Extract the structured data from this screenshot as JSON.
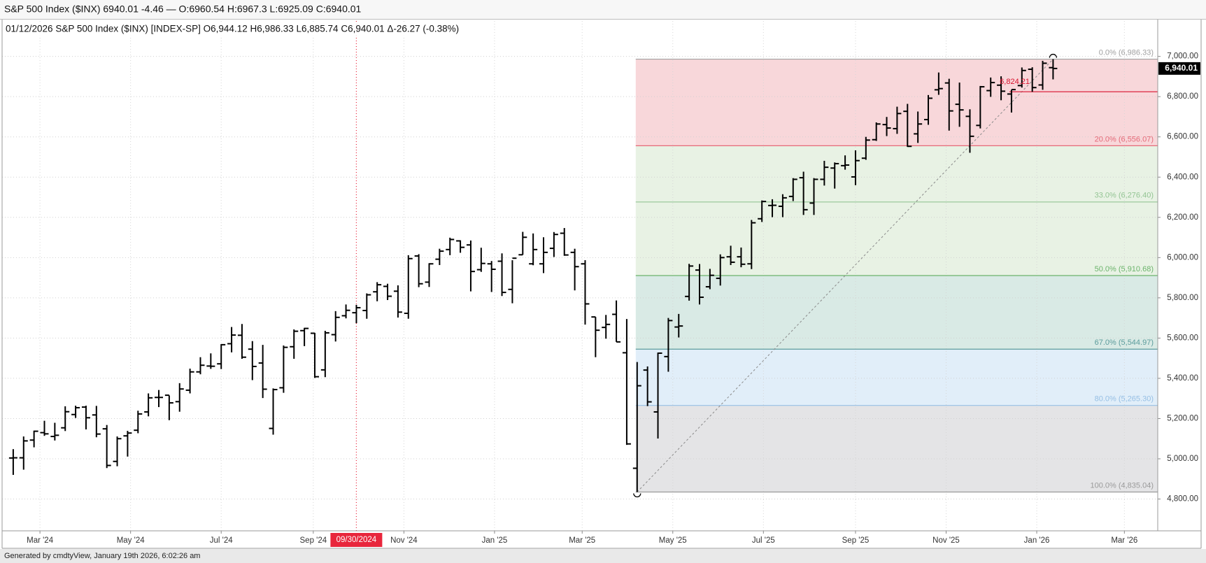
{
  "chart_data": {
    "type": "ohlc",
    "title": "S&P 500 Index ($INX) 6940.01 -4.46 — O:6960.54 H:6967.3 L:6925.09 C:6940.01",
    "subtitle": "01/12/2026 S&P 500 Index ($INX) [INDEX-SP] O6,944.12 H6,986.33 L6,885.74 C6,940.01 Δ-26.27 (-0.38%)",
    "footer": "Generated by cmdtyView, January 19th 2026, 6:02:26 am",
    "date_marker": "09/30/2024",
    "color": "#000000",
    "grid": true,
    "categories": [
      null,
      null,
      null,
      null,
      null,
      null,
      null,
      null,
      null,
      null,
      null,
      null,
      null,
      null,
      null,
      null,
      null,
      null,
      null,
      null,
      null,
      null,
      null,
      null,
      null,
      null,
      null,
      null,
      null,
      null,
      null,
      null,
      null,
      null,
      null,
      null,
      null,
      null,
      null,
      null,
      null,
      null,
      null,
      null,
      null,
      null,
      null,
      null,
      null,
      null,
      null,
      null,
      null,
      null,
      null,
      null,
      null,
      null,
      null,
      null,
      null,
      null,
      null,
      null,
      null,
      null,
      null,
      null,
      null,
      null,
      null,
      null,
      null,
      null,
      null,
      null,
      null,
      null,
      null,
      null,
      null,
      null,
      null,
      null,
      null,
      null,
      null,
      null,
      null,
      null,
      null,
      null,
      null,
      null,
      null,
      null,
      null,
      null,
      null,
      null,
      null
    ],
    "open": [
      5004,
      5005,
      5093,
      5130,
      5111,
      5154,
      5220,
      5257,
      5218,
      5149,
      4987,
      5114,
      5142,
      5233,
      5305,
      5316,
      5284,
      5341,
      5432,
      5461,
      5472,
      5572,
      5614,
      5545,
      5476,
      5151,
      5353,
      5557,
      5637,
      5624,
      5442,
      5617,
      5711,
      5726,
      5737,
      5830,
      5857,
      5833,
      5723,
      6008,
      5878,
      5992,
      6040,
      6083,
      6063,
      5940,
      5969,
      5982,
      5842,
      6014,
      5969,
      5969,
      6046,
      6121,
      6026,
      5969,
      5705,
      5653,
      5718,
      5527,
      4953,
      5441,
      5233,
      5508,
      5655,
      5807,
      5938,
      5855,
      5897,
      6004,
      6004,
      5969,
      6193,
      6259,
      6255,
      6304,
      6397,
      6271,
      6389,
      6445,
      6457,
      6401,
      6494,
      6586,
      6661,
      6641,
      6727,
      6615,
      6686,
      6834,
      6868,
      6762,
      6702,
      6657,
      6830,
      6857,
      6813,
      6855,
      6936,
      6858,
      6944.12
    ],
    "high": [
      5048,
      5111,
      5140,
      5189,
      5179,
      5261,
      5264,
      5264,
      5263,
      5168,
      5111,
      5139,
      5239,
      5325,
      5342,
      5315,
      5376,
      5448,
      5505,
      5524,
      5570,
      5655,
      5670,
      5585,
      5566,
      5350,
      5563,
      5643,
      5651,
      5626,
      5636,
      5734,
      5767,
      5765,
      5822,
      5878,
      5870,
      5862,
      6012,
      6017,
      5972,
      6044,
      6099,
      6086,
      6085,
      6049,
      5983,
      6021,
      5987,
      6128,
      6120,
      6101,
      6127,
      6147,
      6044,
      5987,
      5705,
      5715,
      5787,
      5695,
      5481,
      5459,
      5528,
      5700,
      5720,
      5969,
      5968,
      5944,
      6016,
      6059,
      6050,
      6187,
      6284,
      6290,
      6315,
      6395,
      6427,
      6395,
      6481,
      6473,
      6508,
      6533,
      6600,
      6672,
      6699,
      6750,
      6764,
      6726,
      6808,
      6920,
      6889,
      6870,
      6737,
      6853,
      6895,
      6901,
      6834,
      6945,
      6946,
      6978,
      6986.33
    ],
    "low": [
      4920,
      4946,
      5057,
      5114,
      5091,
      5138,
      5203,
      5146,
      5107,
      4954,
      4963,
      5011,
      5127,
      5211,
      5257,
      5192,
      5234,
      5325,
      5420,
      5447,
      5446,
      5529,
      5497,
      5391,
      5302,
      5120,
      5328,
      5497,
      5560,
      5402,
      5406,
      5583,
      5698,
      5674,
      5696,
      5783,
      5789,
      5702,
      5696,
      5853,
      5854,
      5963,
      6012,
      6024,
      5832,
      5929,
      5829,
      5809,
      5773,
      6014,
      5962,
      5923,
      6003,
      6009,
      5837,
      5667,
      5505,
      5597,
      5581,
      5069,
      4835.04,
      5262,
      5101,
      5433,
      5603,
      5786,
      5767,
      5843,
      5861,
      5963,
      5952,
      5943,
      6177,
      6201,
      6201,
      6281,
      6212,
      6212,
      6358,
      6343,
      6437,
      6360,
      6486,
      6580,
      6604,
      6615,
      6550,
      6570,
      6660,
      6809,
      6631,
      6650,
      6521,
      6642,
      6799,
      6782,
      6721,
      6845,
      6824,
      6834,
      6885.74
    ],
    "close": [
      5005,
      5089,
      5137,
      5124,
      5117,
      5234,
      5254,
      5204,
      5123,
      4967,
      5100,
      5128,
      5223,
      5303,
      5305,
      5278,
      5347,
      5432,
      5465,
      5460,
      5567,
      5615,
      5505,
      5459,
      5346,
      5344,
      5554,
      5634,
      5648,
      5408,
      5626,
      5703,
      5738,
      5751,
      5815,
      5865,
      5808,
      5729,
      5995,
      5870,
      5969,
      6032,
      6090,
      6051,
      5931,
      5971,
      5942,
      5827,
      5997,
      6101,
      6040,
      6026,
      6115,
      6013,
      5955,
      5770,
      5639,
      5668,
      5581,
      5074,
      5363,
      5283,
      5525,
      5687,
      5660,
      5958,
      5803,
      5912,
      6000,
      5977,
      5967,
      6173,
      6279,
      6260,
      6297,
      6389,
      6238,
      6389,
      6449,
      6467,
      6460,
      6482,
      6584,
      6664,
      6644,
      6716,
      6553,
      6664,
      6792,
      6840,
      6729,
      6734,
      6603,
      6849,
      6870,
      6827,
      6835,
      6930,
      6845,
      6966,
      6940.01
    ],
    "ylim": [
      4642,
      7176
    ],
    "yticks": [
      {
        "value": 4800,
        "label": "4,800.00"
      },
      {
        "value": 5000,
        "label": "5,000.00"
      },
      {
        "value": 5200,
        "label": "5,200.00"
      },
      {
        "value": 5400,
        "label": "5,400.00"
      },
      {
        "value": 5600,
        "label": "5,600.00"
      },
      {
        "value": 5800,
        "label": "5,800.00"
      },
      {
        "value": 6000,
        "label": "6,000.00"
      },
      {
        "value": 6200,
        "label": "6,200.00"
      },
      {
        "value": 6400,
        "label": "6,400.00"
      },
      {
        "value": 6600,
        "label": "6,600.00"
      },
      {
        "value": 6800,
        "label": "6,800.00"
      },
      {
        "value": 7000,
        "label": "7,000.00"
      }
    ],
    "xticks": [
      {
        "value": 2.571,
        "label": "Mar '24"
      },
      {
        "value": 11.286,
        "label": "May '24"
      },
      {
        "value": 20,
        "label": "Jul '24"
      },
      {
        "value": 28.857,
        "label": "Sep '24"
      },
      {
        "value": 37.571,
        "label": "Nov '24"
      },
      {
        "value": 46.286,
        "label": "Jan '25"
      },
      {
        "value": 54.714,
        "label": "Mar '25"
      },
      {
        "value": 63.429,
        "label": "May '25"
      },
      {
        "value": 72.143,
        "label": "Jul '25"
      },
      {
        "value": 81,
        "label": "Sep '25"
      },
      {
        "value": 89.714,
        "label": "Nov '25"
      },
      {
        "value": 98.429,
        "label": "Jan '26"
      },
      {
        "value": 106.857,
        "label": "Mar '26"
      }
    ],
    "fib_levels": [
      {
        "label": "0.0% (6,986.33)",
        "value": 6986.33,
        "color": "#a0a0a0"
      },
      {
        "label": "20.0% (6,556.07)",
        "value": 6556.07,
        "color": "#e46a78"
      },
      {
        "label": "33.0% (6,276.40)",
        "value": 6276.4,
        "color": "#93c493"
      },
      {
        "label": "50.0% (5,910.68)",
        "value": 5910.68,
        "color": "#6cb46c"
      },
      {
        "label": "67.0% (5,544.97)",
        "value": 5544.97,
        "color": "#5c9c9c"
      },
      {
        "label": "80.0% (5,265.30)",
        "value": 5265.3,
        "color": "#96bfe4"
      },
      {
        "label": "100.0% (4,835.04)",
        "value": 4835.04,
        "color": "#9a9a9a"
      }
    ],
    "fib_fills": [
      "#f8d7da",
      "#e8f2e4",
      "#e8f2e4",
      "#d9eae5",
      "#e1eef9",
      "#e4e4e6"
    ],
    "annotation": {
      "label": "6,824.21",
      "value": 6824.21,
      "color": "#d8102c"
    },
    "last_price": {
      "label": "6,940.01",
      "value": 6940.01
    }
  }
}
